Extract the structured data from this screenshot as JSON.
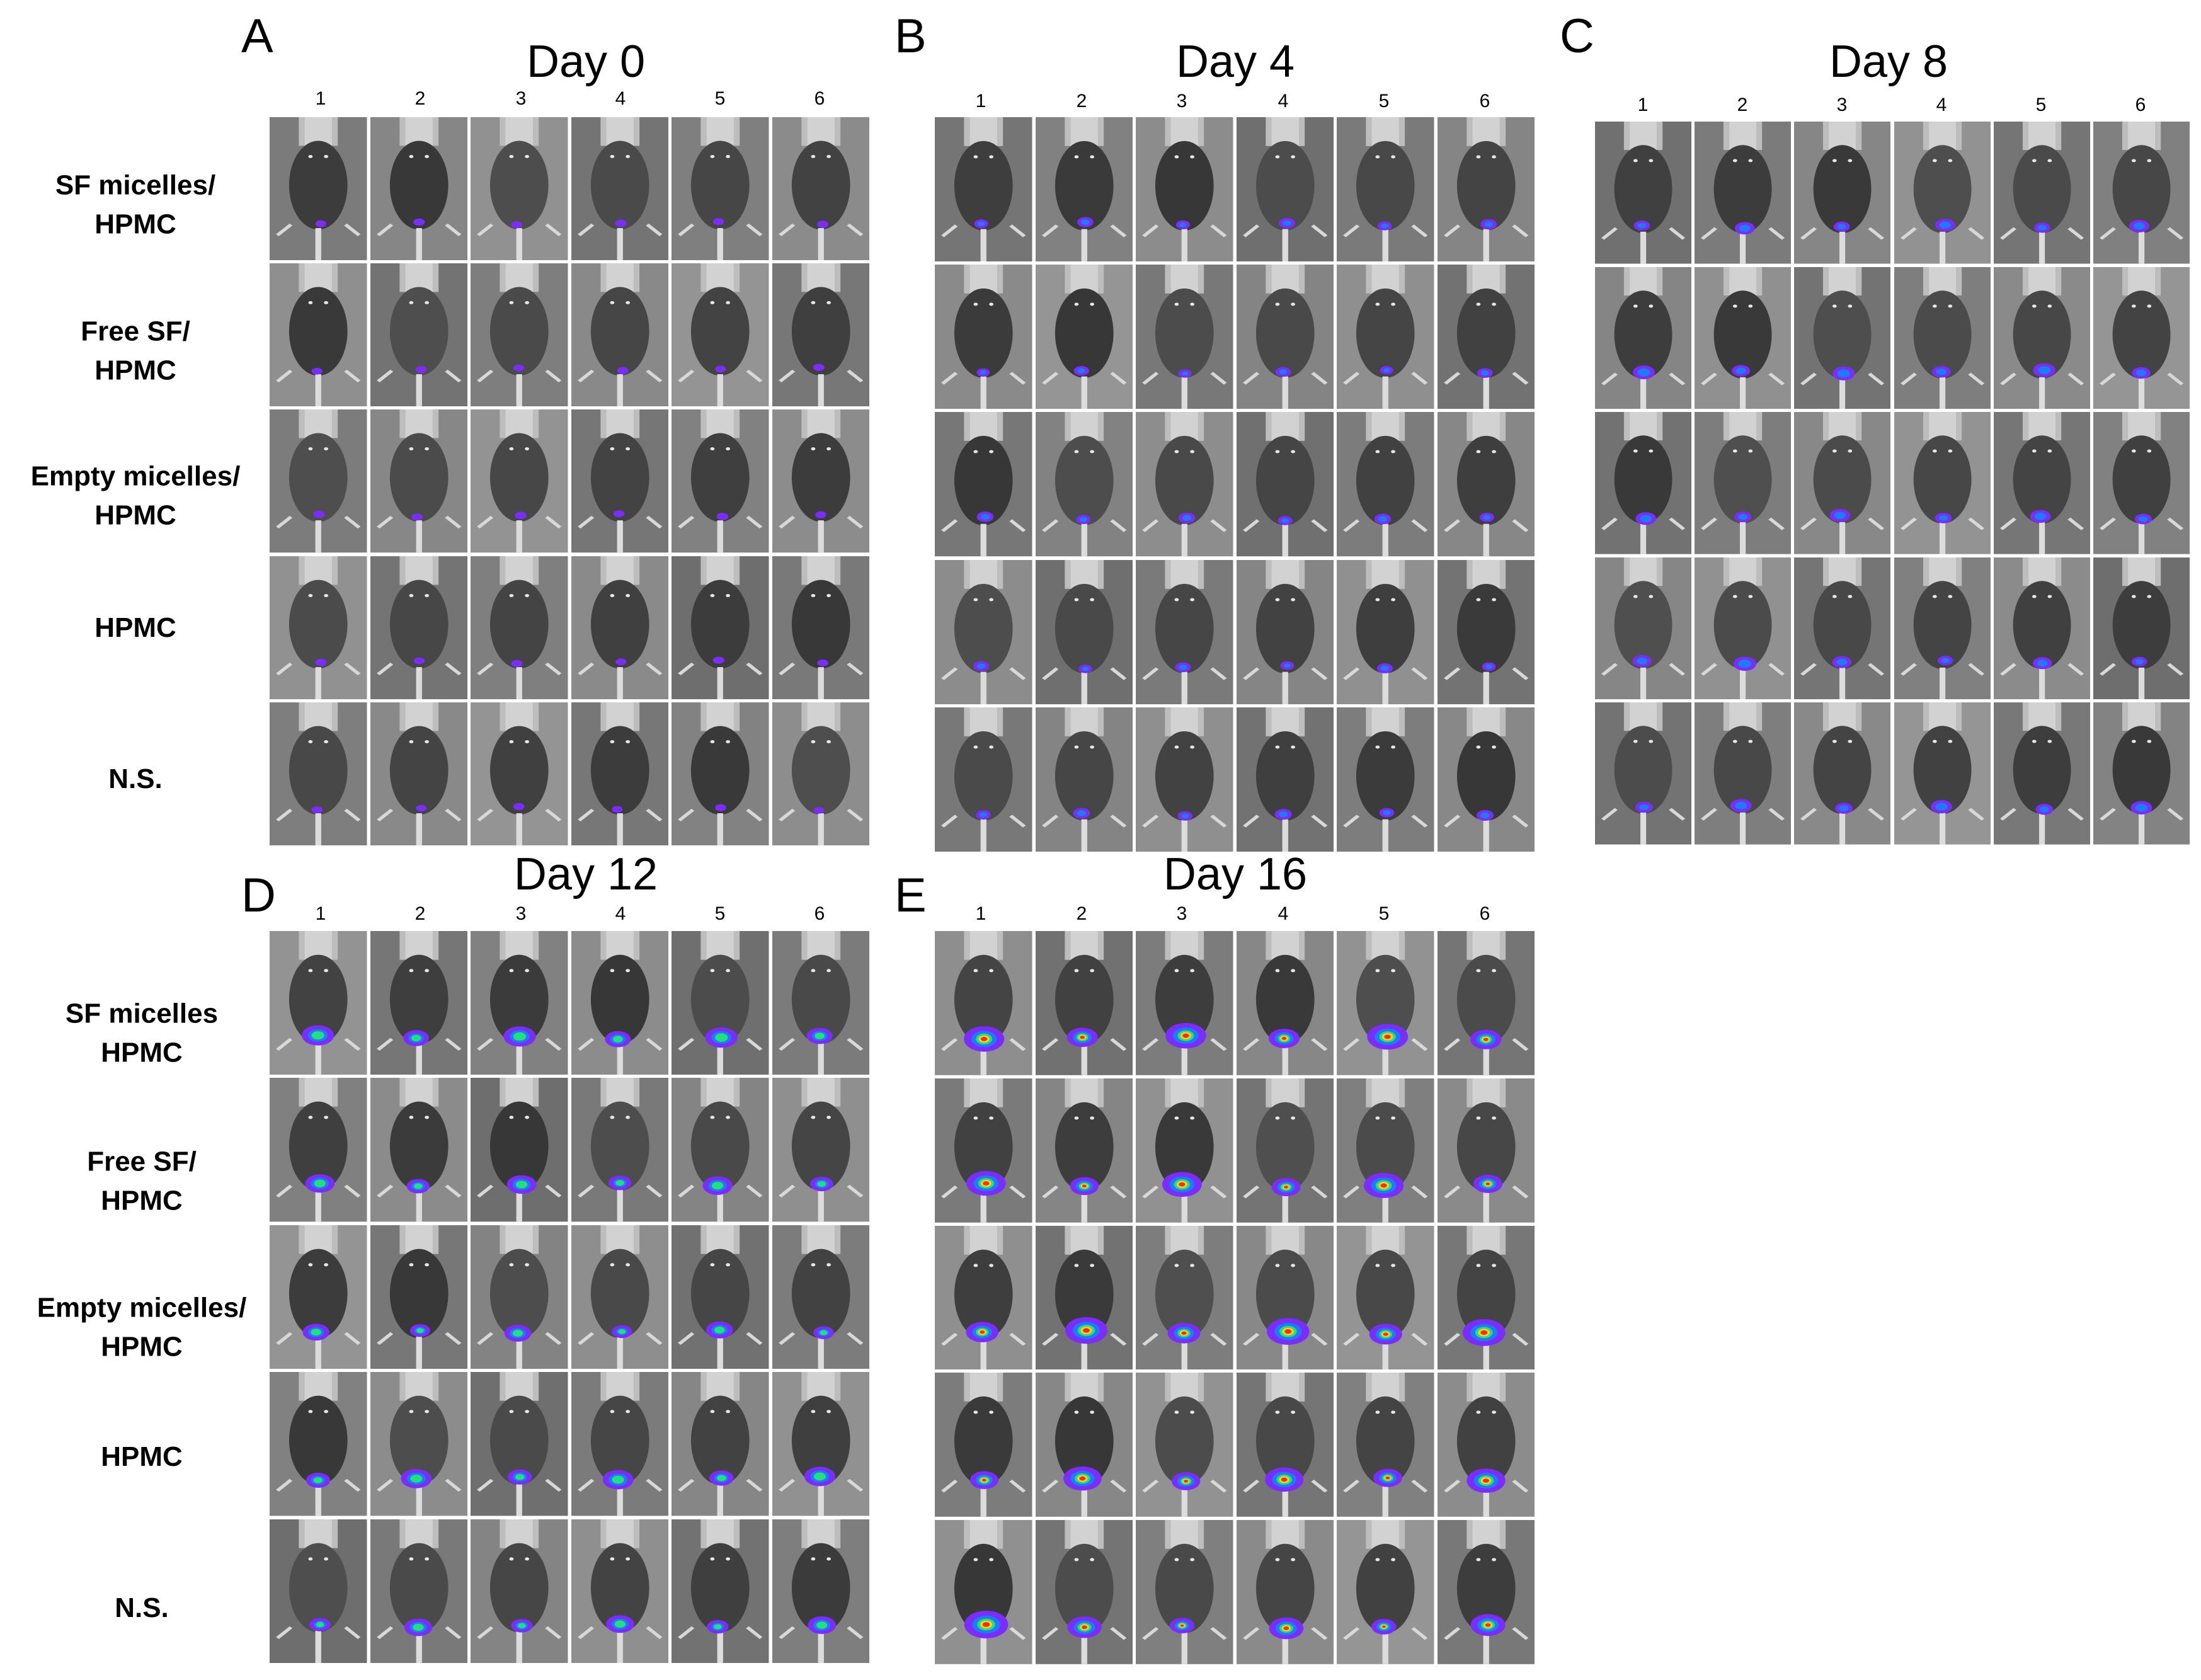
{
  "panels": [
    {
      "id": "A",
      "letter": "A",
      "title": "Day 0",
      "columns": [
        "1",
        "2",
        "3",
        "4",
        "5",
        "6"
      ],
      "row_labels": [
        "SF micelles/\nHPMC",
        "Free SF/\nHPMC",
        "Empty micelles/\nHPMC",
        "HPMC",
        "N.S."
      ],
      "signal_intensity": 0.05
    },
    {
      "id": "B",
      "letter": "B",
      "title": "Day 4",
      "columns": [
        "1",
        "2",
        "3",
        "4",
        "5",
        "6"
      ],
      "row_labels": [],
      "signal_intensity": 0.2
    },
    {
      "id": "C",
      "letter": "C",
      "title": "Day 8",
      "columns": [
        "1",
        "2",
        "3",
        "4",
        "5",
        "6"
      ],
      "row_labels": [],
      "signal_intensity": 0.35
    },
    {
      "id": "D",
      "letter": "D",
      "title": "Day 12",
      "columns": [
        "1",
        "2",
        "3",
        "4",
        "5",
        "6"
      ],
      "row_labels": [
        "SF micelles\nHPMC",
        "Free SF/\nHPMC",
        "Empty micelles/\nHPMC",
        "HPMC",
        "N.S."
      ],
      "signal_intensity": 0.6
    },
    {
      "id": "E",
      "letter": "E",
      "title": "Day 16",
      "columns": [
        "1",
        "2",
        "3",
        "4",
        "5",
        "6"
      ],
      "row_labels": [],
      "signal_intensity": 0.9
    }
  ],
  "colors": {
    "background": "#ffffff",
    "photo_gray": "#8a8a8a",
    "photo_dark": "#4a4a4a",
    "signal_low": "#7b2cff",
    "signal_mid": "#1e7bff",
    "signal_high": "#ff2a1a"
  }
}
